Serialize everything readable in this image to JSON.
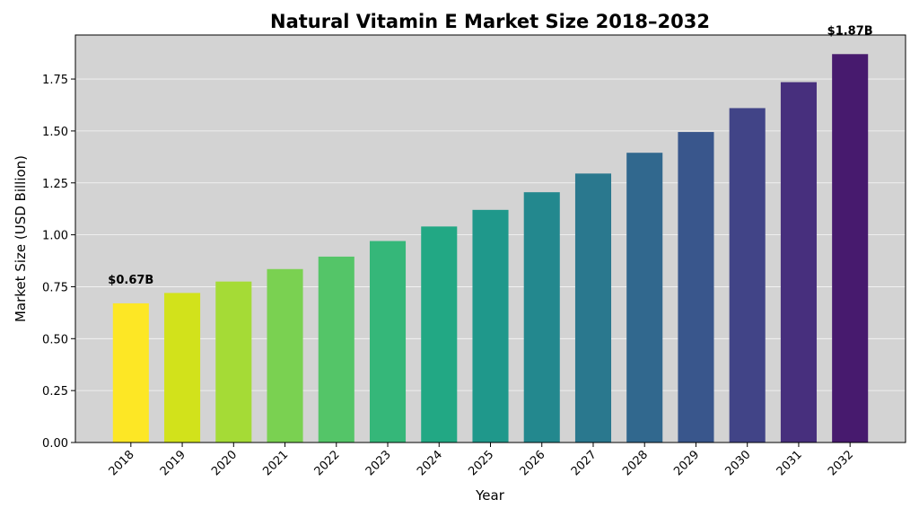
{
  "chart_data": {
    "type": "bar",
    "title": "Natural Vitamin E Market Size 2018–2032",
    "x_label": "Year",
    "y_label": "Market Size (USD Billion)",
    "categories": [
      "2018",
      "2019",
      "2020",
      "2021",
      "2022",
      "2023",
      "2024",
      "2025",
      "2026",
      "2027",
      "2028",
      "2029",
      "2030",
      "2031",
      "2032"
    ],
    "values": [
      0.67,
      0.72,
      0.775,
      0.835,
      0.895,
      0.97,
      1.04,
      1.12,
      1.205,
      1.295,
      1.395,
      1.495,
      1.61,
      1.735,
      1.87
    ],
    "value_labels": [
      "$0.67B",
      null,
      null,
      null,
      null,
      null,
      null,
      null,
      null,
      null,
      null,
      null,
      null,
      null,
      "$1.87B"
    ],
    "colors": [
      "#fde725",
      "#d2e21b",
      "#a5db36",
      "#7ad151",
      "#54c568",
      "#35b779",
      "#22a884",
      "#1f988b",
      "#23888e",
      "#2a788e",
      "#31688e",
      "#39568c",
      "#414487",
      "#472f7d",
      "#471a6e"
    ],
    "ylim": [
      0,
      1.962
    ],
    "yticks": [
      {
        "value": 0,
        "label": "0.00"
      },
      {
        "value": 0.25,
        "label": "0.25"
      },
      {
        "value": 0.5,
        "label": "0.50"
      },
      {
        "value": 0.75,
        "label": "0.75"
      },
      {
        "value": 1,
        "label": "1.00"
      },
      {
        "value": 1.25,
        "label": "1.25"
      },
      {
        "value": 1.5,
        "label": "1.50"
      },
      {
        "value": 1.75,
        "label": "1.75"
      }
    ],
    "grid": true
  }
}
